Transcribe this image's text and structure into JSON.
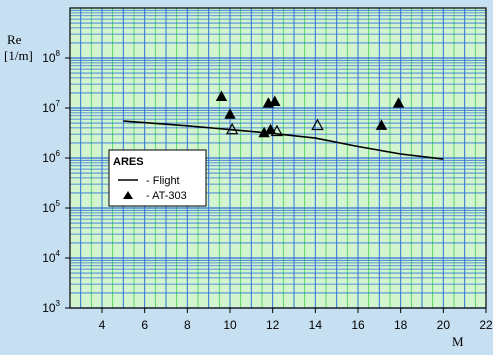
{
  "chart_data": {
    "type": "scatter",
    "title": "",
    "xlabel": "M",
    "ylabel_line1": "Re",
    "ylabel_line2": "[1/m]",
    "xlim": [
      2.5,
      22
    ],
    "ylim": [
      1000,
      1000000000
    ],
    "yscale": "log",
    "x_ticks": [
      4,
      6,
      8,
      10,
      12,
      14,
      16,
      18,
      20,
      22
    ],
    "y_ticks": [
      {
        "value": 1000,
        "base": "10",
        "exp": "3"
      },
      {
        "value": 10000,
        "base": "10",
        "exp": "4"
      },
      {
        "value": 100000,
        "base": "10",
        "exp": "5"
      },
      {
        "value": 1000000,
        "base": "10",
        "exp": "6"
      },
      {
        "value": 10000000,
        "base": "10",
        "exp": "7"
      },
      {
        "value": 100000000,
        "base": "10",
        "exp": "8"
      }
    ],
    "grid": true,
    "legend": {
      "title": "ARES",
      "placement": "left-middle",
      "entries": [
        {
          "marker": "line",
          "label": "-  Flight"
        },
        {
          "marker": "triangle",
          "label": "-  AT-303"
        }
      ]
    },
    "series": [
      {
        "kind": "line",
        "x": [
          5,
          8,
          10,
          12,
          14,
          16,
          18,
          20
        ],
        "y": [
          5500000,
          4400000,
          3700000,
          3100000,
          2500000,
          1700000,
          1200000,
          950000
        ]
      },
      {
        "kind": "filled-triangles",
        "x": [
          9.6,
          10.0,
          11.6,
          11.8,
          11.9,
          12.1,
          17.1,
          17.9
        ],
        "y": [
          17000000,
          7500000,
          3200000,
          12500000,
          3700000,
          13500000,
          4500000,
          12500000
        ]
      },
      {
        "kind": "open-triangles",
        "x": [
          10.1,
          12.2,
          14.1
        ],
        "y": [
          3700000,
          3400000,
          4500000
        ]
      }
    ],
    "colors": {
      "background": "#c6e0f2",
      "plot_area": "#d2f5d0",
      "major_grid": "#2f72d8",
      "minor_grid": "#3fd24a",
      "data": "#000000"
    }
  }
}
